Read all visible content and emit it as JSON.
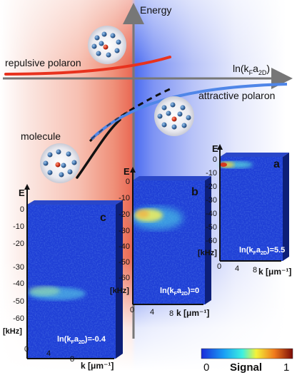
{
  "axes": {
    "energy_label": "Energy",
    "ln_label_main": "ln(k",
    "ln_label_sub": "F",
    "ln_label_mid": "a",
    "ln_label_sub2": "2D",
    "ln_label_end": ")"
  },
  "labels": {
    "repulsive": "repulsive polaron",
    "attractive": "attractive polaron",
    "molecule": "molecule"
  },
  "panels": [
    {
      "id": "a",
      "letter": "a",
      "axis_e": "E",
      "y_ticks": [
        "0",
        "-10",
        "-20",
        "-30",
        "-40",
        "-50",
        "-60",
        "[kHz]"
      ],
      "x_ticks": [
        "0",
        "4",
        "8"
      ],
      "x_label": "k [μm⁻¹]",
      "param_text": "ln(k",
      "param_sub1": "F",
      "param_mid": "a",
      "param_sub2": "2D",
      "param_value": ")=5.5"
    },
    {
      "id": "b",
      "letter": "b",
      "axis_e": "E",
      "y_ticks": [
        "0",
        "-10",
        "-20",
        "-30",
        "-40",
        "-50",
        "-60",
        "[kHz]"
      ],
      "x_ticks": [
        "0",
        "4",
        "8"
      ],
      "x_label": "k [μm⁻¹]",
      "param_text": "ln(k",
      "param_sub1": "F",
      "param_mid": "a",
      "param_sub2": "2D",
      "param_value": ")=0"
    },
    {
      "id": "c",
      "letter": "c",
      "axis_e": "E",
      "y_ticks": [
        "0",
        "-10",
        "-20",
        "-30",
        "-40",
        "-50",
        "-60",
        "[kHz]"
      ],
      "x_ticks": [
        "0",
        "4",
        "8"
      ],
      "x_label": "k [μm⁻¹]",
      "param_text": "ln(k",
      "param_sub1": "F",
      "param_mid": "a",
      "param_sub2": "2D",
      "param_value": ")=-0.4"
    }
  ],
  "colorbar": {
    "min_label": "0",
    "title": "Signal",
    "max_label": "1"
  },
  "colors": {
    "repulsive_curve": "#e8321e",
    "attractive_curve": "#4f86e8",
    "molecule_curve": "#111111",
    "panel_background": "#1f3fd6"
  }
}
